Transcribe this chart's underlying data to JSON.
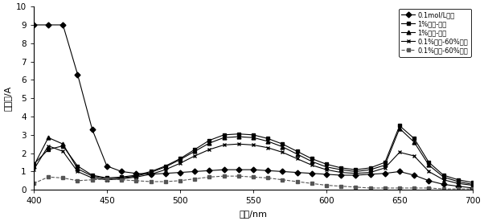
{
  "xlabel": "波长/nm",
  "ylabel": "吸光度/A",
  "xlim": [
    400,
    700
  ],
  "ylim": [
    0,
    10
  ],
  "yticks": [
    0,
    1,
    2,
    3,
    4,
    5,
    6,
    7,
    8,
    9,
    10
  ],
  "xticks": [
    400,
    450,
    500,
    550,
    600,
    650,
    700
  ],
  "legend_labels": [
    "0.1mol/L盐酸",
    "1%盐酸-甲醇",
    "1%盐酸-乙醇",
    "0.1%盐酸-60%丙醇",
    "0.1%盐酸-60%乙醇"
  ],
  "series": {
    "hcl": {
      "x": [
        400,
        410,
        420,
        430,
        440,
        450,
        460,
        470,
        480,
        490,
        500,
        510,
        520,
        530,
        540,
        550,
        560,
        570,
        580,
        590,
        600,
        610,
        620,
        630,
        640,
        650,
        660,
        670,
        680,
        690,
        700
      ],
      "y": [
        9.0,
        9.0,
        9.0,
        6.3,
        3.3,
        1.3,
        1.0,
        0.9,
        0.85,
        0.9,
        0.95,
        1.0,
        1.05,
        1.1,
        1.1,
        1.1,
        1.05,
        1.0,
        0.95,
        0.9,
        0.85,
        0.8,
        0.8,
        0.85,
        0.9,
        1.0,
        0.8,
        0.5,
        0.3,
        0.2,
        0.1
      ],
      "marker": "D",
      "linestyle": "-",
      "color": "#000000",
      "markersize": 3.5
    },
    "hcl_methanol": {
      "x": [
        400,
        410,
        420,
        430,
        440,
        450,
        460,
        470,
        480,
        490,
        500,
        510,
        520,
        530,
        540,
        550,
        560,
        570,
        580,
        590,
        600,
        610,
        620,
        630,
        640,
        650,
        660,
        670,
        680,
        690,
        700
      ],
      "y": [
        1.4,
        2.2,
        2.4,
        1.3,
        0.8,
        0.65,
        0.7,
        0.8,
        1.0,
        1.3,
        1.7,
        2.2,
        2.7,
        3.0,
        3.05,
        3.0,
        2.8,
        2.5,
        2.1,
        1.7,
        1.4,
        1.2,
        1.1,
        1.2,
        1.5,
        3.5,
        2.8,
        1.5,
        0.8,
        0.55,
        0.4
      ],
      "marker": "s",
      "linestyle": "-",
      "color": "#000000",
      "markersize": 3.5
    },
    "hcl_ethanol": {
      "x": [
        400,
        410,
        420,
        430,
        440,
        450,
        460,
        470,
        480,
        490,
        500,
        510,
        520,
        530,
        540,
        550,
        560,
        570,
        580,
        590,
        600,
        610,
        620,
        630,
        640,
        650,
        660,
        670,
        680,
        690,
        700
      ],
      "y": [
        1.3,
        2.85,
        2.5,
        1.15,
        0.75,
        0.6,
        0.65,
        0.75,
        0.95,
        1.25,
        1.65,
        2.1,
        2.55,
        2.85,
        2.9,
        2.85,
        2.65,
        2.35,
        1.95,
        1.55,
        1.25,
        1.1,
        1.0,
        1.1,
        1.35,
        3.35,
        2.6,
        1.35,
        0.7,
        0.45,
        0.3
      ],
      "marker": "^",
      "linestyle": "-",
      "color": "#000000",
      "markersize": 3.5
    },
    "hcl_propanol": {
      "x": [
        400,
        410,
        420,
        430,
        440,
        450,
        460,
        470,
        480,
        490,
        500,
        510,
        520,
        530,
        540,
        550,
        560,
        570,
        580,
        590,
        600,
        610,
        620,
        630,
        640,
        650,
        660,
        670,
        680,
        690,
        700
      ],
      "y": [
        1.1,
        2.4,
        2.1,
        1.0,
        0.65,
        0.55,
        0.6,
        0.7,
        0.85,
        1.1,
        1.45,
        1.85,
        2.2,
        2.45,
        2.5,
        2.45,
        2.3,
        2.05,
        1.7,
        1.35,
        1.1,
        0.95,
        0.9,
        0.95,
        1.2,
        2.05,
        1.85,
        1.0,
        0.55,
        0.35,
        0.25
      ],
      "marker": "x",
      "linestyle": "-",
      "color": "#000000",
      "markersize": 3.5
    },
    "hcl_ethanol60": {
      "x": [
        400,
        410,
        420,
        430,
        440,
        450,
        460,
        470,
        480,
        490,
        500,
        510,
        520,
        530,
        540,
        550,
        560,
        570,
        580,
        590,
        600,
        610,
        620,
        630,
        640,
        650,
        660,
        670,
        680,
        690,
        700
      ],
      "y": [
        0.35,
        0.7,
        0.65,
        0.5,
        0.55,
        0.6,
        0.55,
        0.5,
        0.45,
        0.45,
        0.5,
        0.6,
        0.7,
        0.75,
        0.75,
        0.7,
        0.65,
        0.55,
        0.45,
        0.35,
        0.25,
        0.2,
        0.15,
        0.1,
        0.1,
        0.1,
        0.1,
        0.1,
        0.05,
        0.05,
        0.05
      ],
      "marker": "s",
      "linestyle": "--",
      "color": "#555555",
      "markersize": 3.0
    }
  }
}
